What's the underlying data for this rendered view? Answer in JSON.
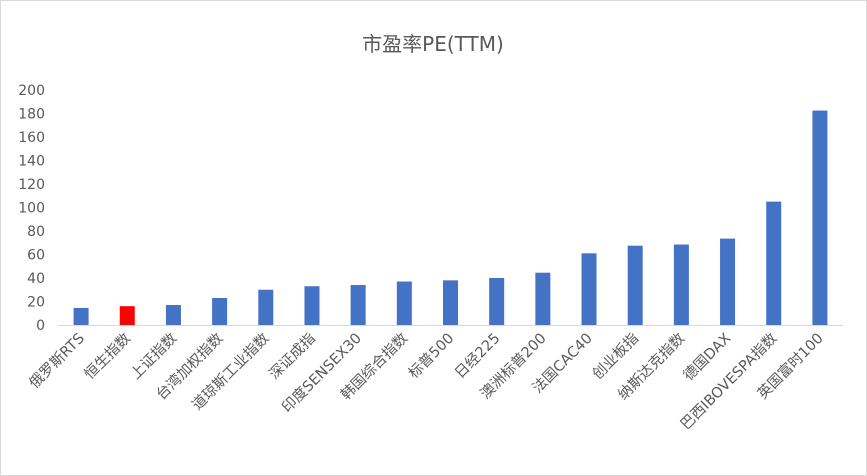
{
  "chart_data": {
    "type": "bar",
    "title": "市盈率PE(TTM)",
    "xlabel": "",
    "ylabel": "",
    "ylim": [
      0,
      200
    ],
    "yticks": [
      0,
      20,
      40,
      60,
      80,
      100,
      120,
      140,
      160,
      180,
      200
    ],
    "grid": false,
    "legend": "none",
    "categories": [
      "俄罗斯RTS",
      "恒生指数",
      "上证指数",
      "台湾加权指数",
      "道琼斯工业指数",
      "深证成指",
      "印度SENSEX30",
      "韩国综合指数",
      "标普500",
      "日经225",
      "澳洲标普200",
      "法国CAC40",
      "创业板指",
      "纳斯达克指数",
      "德国DAX",
      "巴西IBOVESPA指数",
      "英国富时100"
    ],
    "values": [
      14.5,
      16,
      17,
      23,
      30,
      33,
      34,
      37,
      38,
      40,
      44.5,
      61,
      67.5,
      68.5,
      73.5,
      105,
      182.5
    ],
    "colors": {
      "default": "#4472C4",
      "highlight": "#FF0000"
    },
    "highlight_index": 1
  }
}
